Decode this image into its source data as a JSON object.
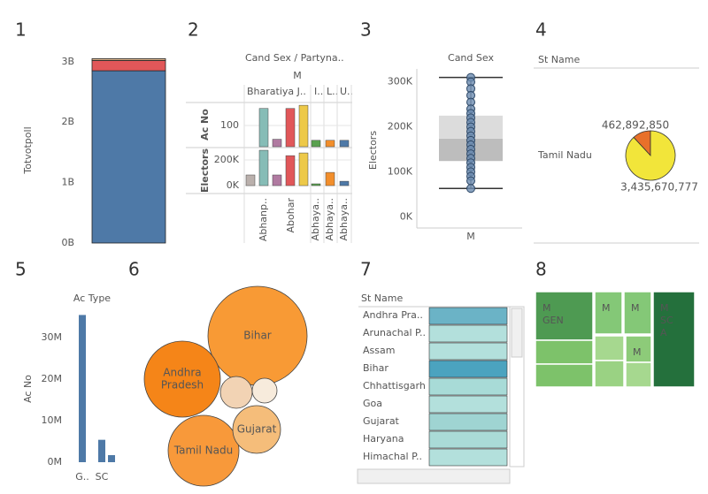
{
  "chart_data": [
    {
      "number": "1",
      "type": "stacked_bar",
      "y_label": "Totvotpoll",
      "series": [
        {
          "color": "#4e79a7",
          "values": [
            2850000000
          ]
        },
        {
          "color": "#e15759",
          "values": [
            170000000
          ]
        },
        {
          "color": "#d9b38c",
          "values": [
            30000000
          ]
        }
      ],
      "ylim": [
        0,
        3100000000
      ],
      "yticks": [
        {
          "value": 0,
          "label": "0B"
        },
        {
          "value": 1000000000,
          "label": "1B"
        },
        {
          "value": 2000000000,
          "label": "2B"
        },
        {
          "value": 3000000000,
          "label": "3B"
        }
      ]
    },
    {
      "number": "2",
      "type": "bar_grid",
      "title": "Cand Sex / Partyna..",
      "subtitle": "M",
      "column_headers": [
        "Bharatiya J..",
        "I..",
        "L..",
        "U.."
      ],
      "row_labels": [
        "Ac No",
        "Electors"
      ],
      "colors": [
        "#bab0ac",
        "#86bcb6",
        "#b07aa1",
        "#e15759",
        "#edc948",
        "#59a14f",
        "#f28e2b",
        "#4e79a7"
      ],
      "ac_no": [
        null,
        180,
        35,
        180,
        195,
        30,
        30,
        30
      ],
      "ac_ylim": [
        0,
        208
      ],
      "ac_yticks": [
        100
      ],
      "electors": [
        83000,
        276000,
        83000,
        234000,
        255000,
        14000,
        103000,
        34000
      ],
      "electors_ylim": [
        -55000,
        290000
      ],
      "electors_yticks": [
        {
          "value": 0,
          "label": "0K"
        },
        {
          "value": 200000,
          "label": "200K"
        }
      ],
      "x_labels": [
        "Abhanp..",
        "Abohar",
        "Abhaya..",
        "Abhaya..",
        "Abhaya.."
      ]
    },
    {
      "number": "3",
      "type": "box",
      "title": "Cand Sex",
      "y_label": "Electors",
      "category": "M",
      "whisker_low": 63000,
      "q1": 124000,
      "median": 174000,
      "q3": 225000,
      "whisker_high": 310000,
      "points": [
        310000,
        300000,
        285000,
        270000,
        255000,
        240000,
        230000,
        220000,
        210000,
        200000,
        190000,
        180000,
        170000,
        160000,
        150000,
        140000,
        130000,
        120000,
        110000,
        100000,
        90000,
        80000,
        63000
      ],
      "ylim": [
        -25000,
        325000
      ],
      "yticks": [
        {
          "value": 0,
          "label": "0K"
        },
        {
          "value": 100000,
          "label": "100K"
        },
        {
          "value": 200000,
          "label": "200K"
        },
        {
          "value": 300000,
          "label": "300K"
        }
      ]
    },
    {
      "number": "4",
      "type": "pie",
      "header": "St Name",
      "row_label": "Tamil Nadu",
      "values": [
        462892850,
        3435670777
      ],
      "value_labels": [
        "462,892,850",
        "3,435,670,777"
      ],
      "colors": [
        "#e8702a",
        "#f2e53a"
      ]
    },
    {
      "number": "5",
      "type": "bar",
      "title": "Ac Type",
      "y_label": "Ac No",
      "categories": [
        "G..",
        "SC",
        null
      ],
      "values": [
        35500000,
        5400000,
        1700000
      ],
      "color": "#4e79a7",
      "ylim": [
        0,
        39000000
      ],
      "yticks": [
        {
          "value": 0,
          "label": "0M"
        },
        {
          "value": 10000000,
          "label": "10M"
        },
        {
          "value": 20000000,
          "label": "20M"
        },
        {
          "value": 30000000,
          "label": "30M"
        }
      ]
    },
    {
      "number": "6",
      "type": "bubble",
      "labels": [
        [
          "Bihar"
        ],
        [
          "Andhra",
          "Pradesh"
        ],
        [
          "Tamil Nadu"
        ],
        [
          "Gujarat"
        ],
        null,
        null
      ],
      "values": [
        3136,
        1849,
        1600,
        729,
        324,
        196
      ],
      "colors": [
        "#f89a35",
        "#f58518",
        "#f8993a",
        "#f5bd7a",
        "#f2d3b4",
        "#f7ebdc"
      ]
    },
    {
      "number": "7",
      "type": "highlight_table",
      "header": "St Name",
      "rows": [
        "Andhra Pra..",
        "Arunachal P..",
        "Assam",
        "Bihar",
        "Chhattisgarh",
        "Goa",
        "Gujarat",
        "Haryana",
        "Himachal P.."
      ],
      "colors": [
        "#6bb3c6",
        "#b3e0dc",
        "#b3e0dc",
        "#4ba3bf",
        "#a8dbd7",
        "#b3e0dc",
        "#9fd4d2",
        "#aadbd7",
        "#b3e0dc"
      ]
    },
    {
      "number": "8",
      "type": "treemap",
      "labels": [
        [
          "M",
          "GEN"
        ],
        null,
        null,
        [
          "M"
        ],
        [
          "M"
        ],
        null,
        null,
        [
          "M"
        ],
        null,
        [
          "M",
          "SC",
          "A"
        ]
      ],
      "colors": [
        "#4e9a52",
        "#7dc26a",
        "#7dc26a",
        "#84c877",
        "#84c877",
        "#a6d88f",
        "#9ad283",
        "#8dcb79",
        "#a6d88f",
        "#24703c"
      ]
    }
  ]
}
